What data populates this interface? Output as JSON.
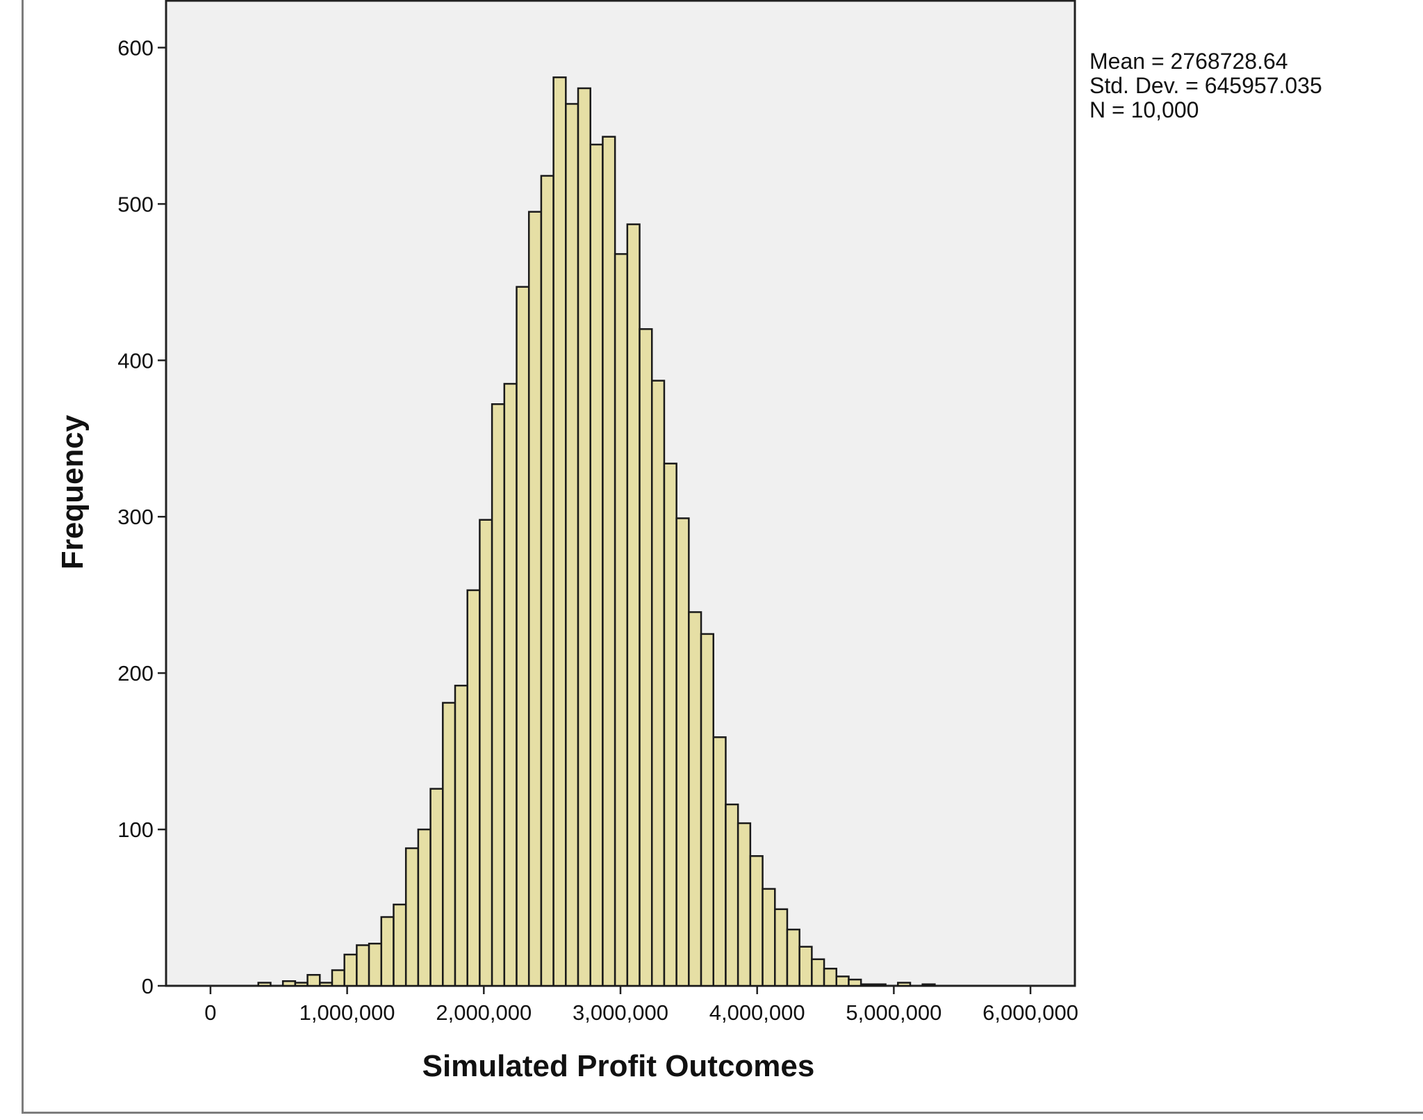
{
  "chart_data": {
    "type": "bar",
    "xlabel": "Simulated Profit Outcomes",
    "ylabel": "Frequency",
    "xlim": [
      -325000,
      6325000
    ],
    "ylim": [
      0,
      630
    ],
    "x_ticks": [
      0,
      1000000,
      2000000,
      3000000,
      4000000,
      5000000,
      6000000
    ],
    "x_tick_labels": [
      "0",
      "1,000,000",
      "2,000,000",
      "3,000,000",
      "4,000,000",
      "5,000,000",
      "6,000,000"
    ],
    "y_ticks": [
      0,
      100,
      200,
      300,
      400,
      500,
      600
    ],
    "y_tick_labels": [
      "0",
      "100",
      "200",
      "300",
      "400",
      "500",
      "600"
    ],
    "bin_width": 90000,
    "bin_start": 350000,
    "frequencies": [
      2,
      0,
      3,
      2,
      7,
      2,
      10,
      20,
      26,
      27,
      44,
      52,
      88,
      100,
      126,
      181,
      192,
      253,
      298,
      372,
      385,
      447,
      495,
      518,
      581,
      564,
      574,
      538,
      543,
      468,
      487,
      420,
      387,
      334,
      299,
      239,
      225,
      159,
      116,
      104,
      83,
      62,
      49,
      36,
      25,
      17,
      11,
      6,
      4,
      1,
      1,
      0,
      2,
      0,
      1
    ],
    "grid": false,
    "bar_color": "#e6dfa5",
    "bar_edge_color": "#1a1a1a",
    "plot_background": "#f0f0f0"
  },
  "stats": {
    "lines": [
      "Mean = 2768728.64",
      "Std. Dev. = 645957.035",
      "N = 10,000"
    ]
  }
}
